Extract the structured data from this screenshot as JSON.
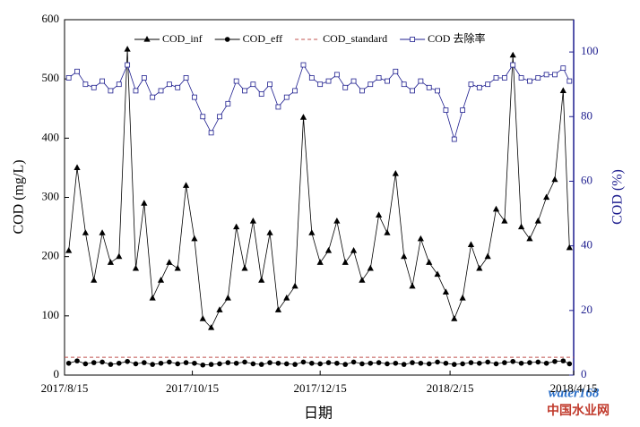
{
  "chart_data": {
    "type": "line",
    "xlabel": "日期",
    "ylabel": "COD (mg/L)",
    "y2label": "COD (%)",
    "legend": "top",
    "xlim": [
      "2017/8/15",
      "2018/4/15"
    ],
    "xticks": [
      "2017/8/15",
      "2017/10/15",
      "2017/12/15",
      "2018/2/15",
      "2018/4/15"
    ],
    "ylim": [
      0,
      600
    ],
    "yticks": [
      0,
      100,
      200,
      300,
      400,
      500,
      600
    ],
    "y2lim": [
      0,
      110
    ],
    "y2ticks": [
      0,
      20,
      40,
      60,
      80,
      100
    ],
    "x": [
      "2017/8/17",
      "2017/8/21",
      "2017/8/25",
      "2017/8/29",
      "2017/9/2",
      "2017/9/6",
      "2017/9/10",
      "2017/9/14",
      "2017/9/18",
      "2017/9/22",
      "2017/9/26",
      "2017/9/30",
      "2017/10/4",
      "2017/10/8",
      "2017/10/12",
      "2017/10/16",
      "2017/10/20",
      "2017/10/24",
      "2017/10/28",
      "2017/11/1",
      "2017/11/5",
      "2017/11/9",
      "2017/11/13",
      "2017/11/17",
      "2017/11/21",
      "2017/11/25",
      "2017/11/29",
      "2017/12/3",
      "2017/12/7",
      "2017/12/11",
      "2017/12/15",
      "2017/12/19",
      "2017/12/23",
      "2017/12/27",
      "2017/12/31",
      "2018/1/4",
      "2018/1/8",
      "2018/1/12",
      "2018/1/16",
      "2018/1/20",
      "2018/1/24",
      "2018/1/28",
      "2018/2/1",
      "2018/2/5",
      "2018/2/9",
      "2018/2/13",
      "2018/2/17",
      "2018/2/21",
      "2018/2/25",
      "2018/3/1",
      "2018/3/5",
      "2018/3/9",
      "2018/3/13",
      "2018/3/17",
      "2018/3/21",
      "2018/3/25",
      "2018/3/29",
      "2018/4/2",
      "2018/4/6",
      "2018/4/10",
      "2018/4/13"
    ],
    "series": [
      {
        "name": "COD_inf",
        "color": "#000000",
        "marker": "triangle",
        "values": [
          210,
          350,
          240,
          160,
          240,
          190,
          200,
          550,
          180,
          290,
          130,
          160,
          190,
          180,
          320,
          230,
          95,
          80,
          110,
          130,
          250,
          180,
          260,
          160,
          240,
          110,
          130,
          150,
          435,
          240,
          190,
          210,
          260,
          190,
          210,
          160,
          180,
          270,
          240,
          340,
          200,
          150,
          230,
          190,
          170,
          140,
          95,
          130,
          220,
          180,
          200,
          280,
          260,
          540,
          250,
          230,
          260,
          300,
          330,
          480,
          215
        ]
      },
      {
        "name": "COD_eff",
        "color": "#000000",
        "marker": "circle",
        "values": [
          20,
          24,
          19,
          21,
          22,
          18,
          20,
          23,
          19,
          21,
          18,
          20,
          22,
          19,
          21,
          20,
          17,
          18,
          19,
          21,
          20,
          22,
          19,
          18,
          21,
          20,
          19,
          18,
          22,
          20,
          19,
          21,
          20,
          18,
          22,
          19,
          20,
          21,
          19,
          20,
          18,
          21,
          20,
          19,
          22,
          20,
          18,
          19,
          21,
          20,
          22,
          19,
          21,
          23,
          20,
          21,
          22,
          20,
          23,
          24,
          19
        ]
      },
      {
        "name": "COD_standard",
        "color": "#c0504d",
        "marker": "none",
        "style": "dashed",
        "x": [
          "2017/8/15",
          "2018/4/15"
        ],
        "values": [
          30,
          30
        ]
      },
      {
        "name": "COD 去除率",
        "color": "#1f1f8f",
        "marker": "square",
        "axis": "y2",
        "values": [
          92,
          94,
          90,
          89,
          91,
          88,
          90,
          96,
          88,
          92,
          86,
          88,
          90,
          89,
          92,
          86,
          80,
          75,
          80,
          84,
          91,
          88,
          90,
          87,
          90,
          83,
          86,
          88,
          96,
          92,
          90,
          91,
          93,
          89,
          91,
          88,
          90,
          92,
          91,
          94,
          90,
          88,
          91,
          89,
          88,
          82,
          73,
          82,
          90,
          89,
          90,
          92,
          92,
          96,
          92,
          91,
          92,
          93,
          93,
          95,
          91
        ]
      }
    ],
    "watermark": {
      "text": "water168",
      "subtext": "中国水业网"
    }
  }
}
